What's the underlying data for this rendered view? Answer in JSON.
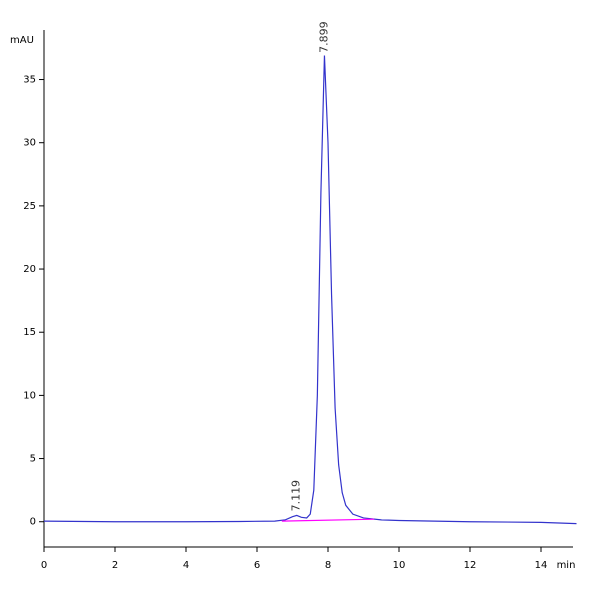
{
  "chart_data": {
    "type": "line",
    "y_label": "mAU",
    "x_label": "min",
    "xlim": [
      0,
      15
    ],
    "ylim": [
      -2,
      39
    ],
    "xticks": [
      0,
      2,
      4,
      6,
      8,
      10,
      12,
      14
    ],
    "yticks": [
      0,
      5,
      10,
      15,
      20,
      25,
      30,
      35
    ],
    "peaks": [
      7.119,
      7.899
    ],
    "series": [
      {
        "name": "signal",
        "color": "#3333cc",
        "x": [
          0,
          2,
          4,
          5.5,
          6.5,
          6.8,
          7.0,
          7.12,
          7.25,
          7.4,
          7.5,
          7.6,
          7.7,
          7.8,
          7.9,
          8.0,
          8.1,
          8.2,
          8.3,
          8.4,
          8.5,
          8.7,
          9.0,
          9.5,
          10,
          12,
          14,
          15
        ],
        "values": [
          0.05,
          0.0,
          0.0,
          0.02,
          0.05,
          0.15,
          0.4,
          0.5,
          0.35,
          0.3,
          0.6,
          2.5,
          10,
          26,
          36.9,
          30,
          18,
          9,
          4.5,
          2.3,
          1.3,
          0.6,
          0.3,
          0.15,
          0.1,
          0.0,
          -0.05,
          -0.15
        ]
      },
      {
        "name": "baseline",
        "color": "#ff00ff",
        "x": [
          6.7,
          9.3
        ],
        "values": [
          0.05,
          0.2
        ]
      }
    ]
  }
}
